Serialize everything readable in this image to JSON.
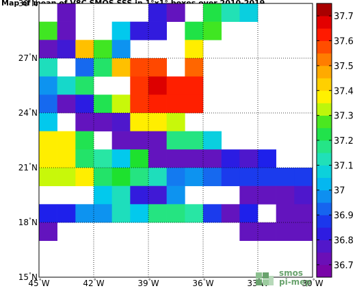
{
  "chart_data": {
    "type": "heatmap",
    "title": "Map of mean of V8C SMOS SSS in 1°x1° boxes over 2010-2019",
    "x_ticks": [
      "45°W",
      "42°W",
      "39°W",
      "36°W",
      "33°W",
      "30°W"
    ],
    "y_ticks": [
      "30°N",
      "27°N",
      "24°N",
      "21°N",
      "18°N",
      "15°N"
    ],
    "xlim": [
      -45,
      -30
    ],
    "ylim": [
      15,
      30
    ],
    "x_centers": [
      -44.5,
      -43.5,
      -42.5,
      -41.5,
      -40.5,
      -39.5,
      -38.5,
      -37.5,
      -36.5,
      -35.5,
      -34.5,
      -33.5,
      -32.5,
      -31.5,
      -30.5
    ],
    "y_centers": [
      29.5,
      28.5,
      27.5,
      26.5,
      25.5,
      24.5,
      23.5,
      22.5,
      21.5,
      20.5,
      19.5,
      18.5,
      17.5,
      16.5,
      15.5
    ],
    "values": [
      [
        null,
        36.75,
        null,
        null,
        null,
        null,
        36.82,
        36.75,
        null,
        37.23,
        37.13,
        37.07,
        null,
        null,
        null
      ],
      [
        37.27,
        36.75,
        null,
        null,
        37.05,
        36.82,
        36.82,
        null,
        37.23,
        37.27,
        null,
        null,
        null,
        null,
        null
      ],
      [
        36.75,
        36.8,
        37.45,
        37.27,
        36.98,
        null,
        null,
        null,
        37.38,
        null,
        null,
        null,
        null,
        null,
        null
      ],
      [
        37.12,
        null,
        36.93,
        37.2,
        37.45,
        37.58,
        37.58,
        null,
        37.55,
        null,
        null,
        null,
        null,
        null,
        null
      ],
      [
        36.98,
        37.1,
        37.2,
        null,
        null,
        37.6,
        37.68,
        37.62,
        37.62,
        null,
        null,
        null,
        null,
        null,
        null
      ],
      [
        36.93,
        36.75,
        36.83,
        37.22,
        37.33,
        37.6,
        37.62,
        37.62,
        37.62,
        null,
        null,
        null,
        null,
        null,
        null
      ],
      [
        37.05,
        null,
        36.75,
        36.75,
        36.78,
        37.38,
        37.38,
        37.33,
        null,
        null,
        null,
        null,
        null,
        null,
        null
      ],
      [
        37.38,
        37.38,
        37.22,
        null,
        36.75,
        36.75,
        36.75,
        37.18,
        37.18,
        37.07,
        null,
        null,
        null,
        null,
        null
      ],
      [
        37.38,
        37.38,
        37.2,
        37.15,
        37.05,
        37.25,
        36.75,
        36.75,
        36.75,
        36.75,
        36.83,
        36.78,
        36.85,
        null,
        null
      ],
      [
        37.33,
        37.33,
        37.38,
        37.2,
        37.25,
        37.18,
        37.12,
        36.95,
        36.98,
        36.93,
        36.88,
        36.88,
        36.88,
        36.88,
        36.88
      ],
      [
        null,
        null,
        null,
        37.05,
        37.12,
        36.82,
        36.8,
        36.98,
        null,
        null,
        null,
        36.75,
        36.75,
        36.75,
        36.78
      ],
      [
        36.85,
        36.85,
        36.98,
        36.98,
        37.12,
        37.05,
        37.18,
        37.18,
        37.15,
        36.88,
        36.75,
        36.85,
        null,
        36.75,
        36.75
      ],
      [
        36.75,
        null,
        null,
        null,
        null,
        null,
        null,
        null,
        null,
        null,
        null,
        36.75,
        36.75,
        36.75,
        36.75
      ],
      [
        null,
        null,
        null,
        null,
        null,
        null,
        null,
        null,
        null,
        null,
        null,
        null,
        null,
        null,
        null
      ],
      [
        null,
        null,
        null,
        null,
        null,
        null,
        null,
        null,
        null,
        null,
        null,
        null,
        null,
        null,
        null
      ]
    ],
    "colorbar": {
      "min": 36.65,
      "max": 37.75,
      "ticks": [
        "36.7",
        "36.8",
        "36.9",
        "37",
        "37.1",
        "37.2",
        "37.3",
        "37.4",
        "37.5",
        "37.6",
        "37.7"
      ]
    },
    "grid": true
  },
  "logo": {
    "line1": "smos",
    "line2": "pi-mep",
    "color": "#6aa36e"
  }
}
